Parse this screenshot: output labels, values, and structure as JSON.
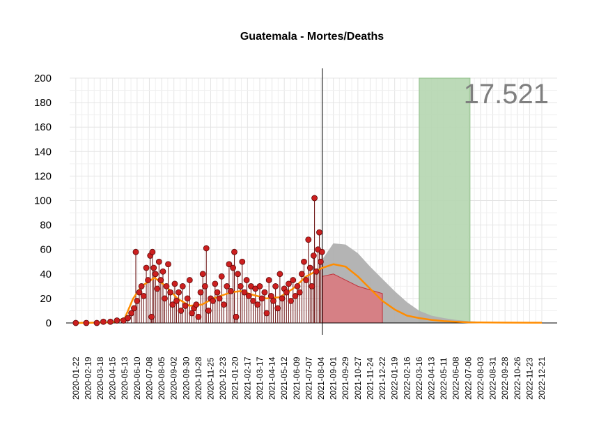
{
  "chart_data": {
    "type": "line",
    "title": "Guatemala - Mortes/Deaths",
    "annotation": "17.521",
    "ylim": [
      0,
      200
    ],
    "yticks": [
      0,
      20,
      40,
      60,
      80,
      100,
      120,
      140,
      160,
      180,
      200
    ],
    "xlim": [
      "2020-01-08",
      "2023-01-25"
    ],
    "xticks": [
      "2020-01-22",
      "2020-02-19",
      "2020-03-18",
      "2020-04-15",
      "2020-05-13",
      "2020-06-10",
      "2020-07-08",
      "2020-08-05",
      "2020-09-02",
      "2020-09-30",
      "2020-10-28",
      "2020-11-25",
      "2020-12-23",
      "2021-01-20",
      "2021-02-17",
      "2021-03-17",
      "2021-04-14",
      "2021-05-12",
      "2021-06-09",
      "2021-07-07",
      "2021-08-04",
      "2021-09-01",
      "2021-09-29",
      "2021-10-27",
      "2021-11-24",
      "2021-12-22",
      "2022-01-19",
      "2022-02-16",
      "2022-03-16",
      "2022-04-13",
      "2022-05-11",
      "2022-06-08",
      "2022-07-06",
      "2022-08-03",
      "2022-08-31",
      "2022-09-28",
      "2022-10-26",
      "2022-11-23",
      "2022-12-21"
    ],
    "grid": true,
    "vertical_line": "2021-08-07",
    "highlight_band": {
      "start": "2022-03-16",
      "end": "2022-07-10",
      "color": "#b5d6b0"
    },
    "colors": {
      "points": "#cc1f1f",
      "smooth": "#ff8c00",
      "gray_forecast": "#b0b0b0",
      "red_forecast": "#d97a7f"
    },
    "observed_points": [
      [
        "2020-01-22",
        0
      ],
      [
        "2020-02-15",
        0
      ],
      [
        "2020-03-10",
        0
      ],
      [
        "2020-03-25",
        1
      ],
      [
        "2020-04-10",
        1
      ],
      [
        "2020-04-25",
        2
      ],
      [
        "2020-05-10",
        2
      ],
      [
        "2020-05-20",
        4
      ],
      [
        "2020-05-28",
        8
      ],
      [
        "2020-06-03",
        12
      ],
      [
        "2020-06-07",
        58
      ],
      [
        "2020-06-10",
        18
      ],
      [
        "2020-06-15",
        25
      ],
      [
        "2020-06-20",
        30
      ],
      [
        "2020-06-25",
        22
      ],
      [
        "2020-07-01",
        45
      ],
      [
        "2020-07-05",
        35
      ],
      [
        "2020-07-10",
        55
      ],
      [
        "2020-07-13",
        5
      ],
      [
        "2020-07-15",
        58
      ],
      [
        "2020-07-18",
        45
      ],
      [
        "2020-07-22",
        40
      ],
      [
        "2020-07-26",
        28
      ],
      [
        "2020-07-30",
        50
      ],
      [
        "2020-08-03",
        35
      ],
      [
        "2020-08-08",
        42
      ],
      [
        "2020-08-12",
        20
      ],
      [
        "2020-08-16",
        30
      ],
      [
        "2020-08-20",
        48
      ],
      [
        "2020-08-25",
        25
      ],
      [
        "2020-08-30",
        15
      ],
      [
        "2020-09-04",
        32
      ],
      [
        "2020-09-08",
        18
      ],
      [
        "2020-09-13",
        25
      ],
      [
        "2020-09-18",
        10
      ],
      [
        "2020-09-22",
        30
      ],
      [
        "2020-09-28",
        14
      ],
      [
        "2020-10-03",
        20
      ],
      [
        "2020-10-08",
        35
      ],
      [
        "2020-10-13",
        8
      ],
      [
        "2020-10-18",
        12
      ],
      [
        "2020-10-23",
        15
      ],
      [
        "2020-10-28",
        5
      ],
      [
        "2020-11-02",
        25
      ],
      [
        "2020-11-07",
        40
      ],
      [
        "2020-11-12",
        30
      ],
      [
        "2020-11-15",
        61
      ],
      [
        "2020-11-20",
        10
      ],
      [
        "2020-11-25",
        20
      ],
      [
        "2020-11-30",
        18
      ],
      [
        "2020-12-05",
        32
      ],
      [
        "2020-12-10",
        25
      ],
      [
        "2020-12-15",
        20
      ],
      [
        "2020-12-20",
        38
      ],
      [
        "2020-12-25",
        15
      ],
      [
        "2021-01-01",
        30
      ],
      [
        "2021-01-06",
        48
      ],
      [
        "2021-01-10",
        26
      ],
      [
        "2021-01-15",
        45
      ],
      [
        "2021-01-18",
        58
      ],
      [
        "2021-01-22",
        5
      ],
      [
        "2021-01-26",
        40
      ],
      [
        "2021-02-01",
        30
      ],
      [
        "2021-02-05",
        50
      ],
      [
        "2021-02-10",
        25
      ],
      [
        "2021-02-15",
        35
      ],
      [
        "2021-02-20",
        22
      ],
      [
        "2021-02-25",
        30
      ],
      [
        "2021-03-02",
        18
      ],
      [
        "2021-03-07",
        28
      ],
      [
        "2021-03-12",
        15
      ],
      [
        "2021-03-17",
        30
      ],
      [
        "2021-03-22",
        20
      ],
      [
        "2021-03-28",
        25
      ],
      [
        "2021-04-02",
        8
      ],
      [
        "2021-04-07",
        35
      ],
      [
        "2021-04-12",
        22
      ],
      [
        "2021-04-17",
        18
      ],
      [
        "2021-04-22",
        30
      ],
      [
        "2021-04-27",
        12
      ],
      [
        "2021-05-02",
        40
      ],
      [
        "2021-05-07",
        20
      ],
      [
        "2021-05-12",
        28
      ],
      [
        "2021-05-17",
        25
      ],
      [
        "2021-05-22",
        32
      ],
      [
        "2021-05-27",
        18
      ],
      [
        "2021-06-01",
        35
      ],
      [
        "2021-06-06",
        22
      ],
      [
        "2021-06-11",
        30
      ],
      [
        "2021-06-16",
        25
      ],
      [
        "2021-06-21",
        40
      ],
      [
        "2021-06-26",
        50
      ],
      [
        "2021-07-01",
        35
      ],
      [
        "2021-07-06",
        68
      ],
      [
        "2021-07-10",
        45
      ],
      [
        "2021-07-14",
        30
      ],
      [
        "2021-07-18",
        55
      ],
      [
        "2021-07-20",
        102
      ],
      [
        "2021-07-24",
        42
      ],
      [
        "2021-07-28",
        60
      ],
      [
        "2021-07-31",
        74
      ],
      [
        "2021-08-03",
        50
      ],
      [
        "2021-08-06",
        58
      ]
    ],
    "smooth_curve": [
      [
        "2020-01-22",
        0
      ],
      [
        "2020-04-15",
        0.5
      ],
      [
        "2020-05-13",
        4
      ],
      [
        "2020-06-01",
        20
      ],
      [
        "2020-06-20",
        30
      ],
      [
        "2020-07-20",
        37
      ],
      [
        "2020-08-15",
        30
      ],
      [
        "2020-09-10",
        20
      ],
      [
        "2020-10-08",
        14
      ],
      [
        "2020-11-05",
        15
      ],
      [
        "2020-12-01",
        20
      ],
      [
        "2021-01-10",
        25
      ],
      [
        "2021-02-01",
        26
      ],
      [
        "2021-03-01",
        23
      ],
      [
        "2021-04-01",
        20
      ],
      [
        "2021-05-01",
        21
      ],
      [
        "2021-06-01",
        28
      ],
      [
        "2021-07-01",
        38
      ],
      [
        "2021-08-07",
        45
      ],
      [
        "2021-09-01",
        48
      ],
      [
        "2021-09-29",
        46
      ],
      [
        "2021-10-27",
        38
      ],
      [
        "2021-11-24",
        28
      ],
      [
        "2021-12-22",
        18
      ],
      [
        "2022-01-19",
        11
      ],
      [
        "2022-02-16",
        6
      ],
      [
        "2022-03-16",
        4
      ],
      [
        "2022-04-13",
        2.5
      ],
      [
        "2022-05-11",
        1.5
      ],
      [
        "2022-06-08",
        1
      ],
      [
        "2022-07-06",
        0.5
      ],
      [
        "2022-09-28",
        0.3
      ],
      [
        "2022-12-21",
        0.2
      ]
    ],
    "gray_band_upper": [
      [
        "2021-08-07",
        52
      ],
      [
        "2021-09-01",
        65
      ],
      [
        "2021-09-29",
        64
      ],
      [
        "2021-10-27",
        57
      ],
      [
        "2021-11-24",
        46
      ],
      [
        "2021-12-22",
        36
      ],
      [
        "2022-01-19",
        26
      ],
      [
        "2022-02-16",
        17
      ],
      [
        "2022-03-16",
        10
      ],
      [
        "2022-04-13",
        6
      ],
      [
        "2022-05-11",
        4
      ],
      [
        "2022-06-08",
        2.5
      ],
      [
        "2022-07-06",
        1.5
      ],
      [
        "2022-08-03",
        1
      ],
      [
        "2022-08-31",
        0.5
      ],
      [
        "2022-09-28",
        0.3
      ]
    ],
    "red_band_upper": [
      [
        "2021-08-07",
        38
      ],
      [
        "2021-09-01",
        40
      ],
      [
        "2021-09-29",
        35
      ],
      [
        "2021-10-27",
        30
      ],
      [
        "2021-11-24",
        27
      ],
      [
        "2021-12-22",
        24
      ]
    ],
    "red_band_end": "2021-12-22"
  }
}
